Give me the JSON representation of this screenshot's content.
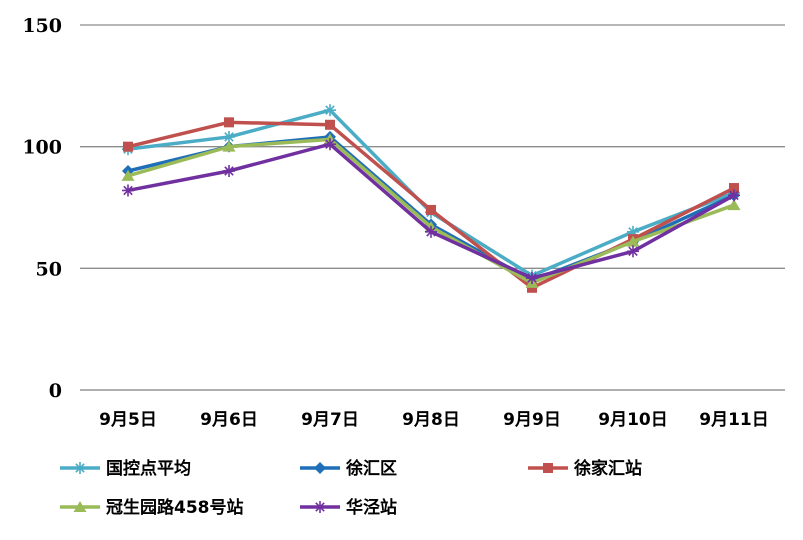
{
  "chart_data": {
    "type": "line",
    "title": "",
    "xlabel": "",
    "ylabel": "",
    "ylim": [
      0,
      150
    ],
    "yticks": [
      0,
      50,
      100,
      150
    ],
    "grid": true,
    "legend_position": "bottom",
    "categories": [
      "9月5日",
      "9月6日",
      "9月7日",
      "9月8日",
      "9月9日",
      "9月10日",
      "9月11日"
    ],
    "series": [
      {
        "name": "国控点平均",
        "color": "#4BACC6",
        "marker": "asterisk",
        "values": [
          99,
          104,
          115,
          73,
          47,
          65,
          81
        ]
      },
      {
        "name": "徐汇区",
        "color": "#1F6FB8",
        "marker": "diamond",
        "values": [
          90,
          100,
          104,
          68,
          45,
          61,
          80
        ]
      },
      {
        "name": "徐家汇站",
        "color": "#C0504D",
        "marker": "square",
        "values": [
          100,
          110,
          109,
          74,
          42,
          62,
          83
        ]
      },
      {
        "name": "冠生园路458号站",
        "color": "#9BBB59",
        "marker": "triangle",
        "values": [
          88,
          100,
          103,
          67,
          44,
          61,
          76
        ]
      },
      {
        "name": "华泾站",
        "color": "#7030A0",
        "marker": "asterisk",
        "values": [
          82,
          90,
          101,
          65,
          46,
          57,
          80
        ]
      }
    ]
  }
}
